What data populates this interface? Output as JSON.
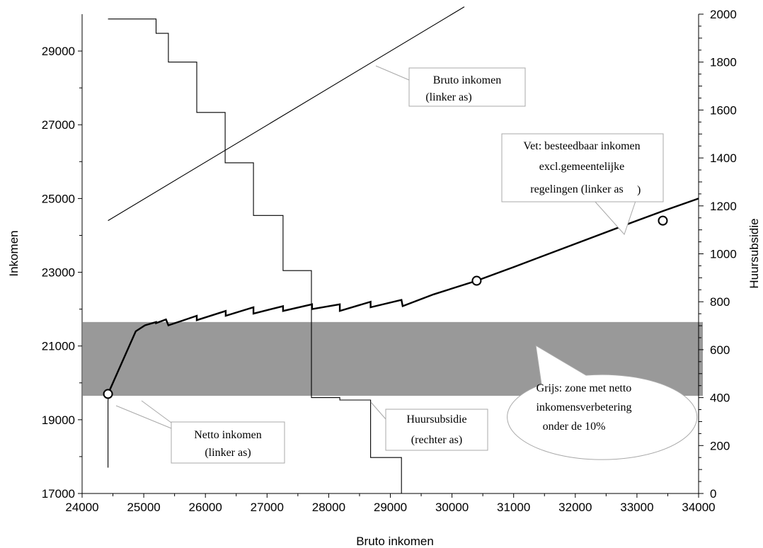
{
  "chart_data": {
    "type": "line",
    "xlabel": "Bruto inkomen",
    "ylabel_left": "Inkomen",
    "ylabel_right": "Huursubsidie",
    "xlim": [
      24000,
      34000
    ],
    "ylim_left": [
      17000,
      30000
    ],
    "ylim_right": [
      0,
      2000
    ],
    "x_ticks": [
      "24000",
      "25000",
      "26000",
      "27000",
      "28000",
      "29000",
      "30000",
      "31000",
      "32000",
      "33000",
      "34000"
    ],
    "y_left_ticks": [
      "17000",
      "19000",
      "21000",
      "23000",
      "25000",
      "27000",
      "29000"
    ],
    "y_right_ticks": [
      "0",
      "200",
      "400",
      "600",
      "800",
      "1000",
      "1200",
      "1400",
      "1600",
      "1800",
      "2000"
    ],
    "grey_zone": {
      "y_from": 19650,
      "y_to": 21650,
      "color": "#999999"
    },
    "series": [
      {
        "axis": "left",
        "color": "#000000",
        "bold": false,
        "x": [
          24420,
          30200
        ],
        "y": [
          24400,
          30200
        ]
      },
      {
        "axis": "right",
        "color": "#000000",
        "bold": false,
        "step": true,
        "x": [
          24420,
          25200,
          25200,
          25400,
          25400,
          25860,
          25860,
          26320,
          26320,
          26780,
          26780,
          27260,
          27260,
          27720,
          27720,
          28180,
          28180,
          28680,
          28680,
          29180,
          29180,
          29220
        ],
        "y": [
          1980,
          1980,
          1920,
          1920,
          1800,
          1800,
          1590,
          1590,
          1380,
          1380,
          1160,
          1160,
          930,
          930,
          400,
          400,
          390,
          390,
          150,
          150,
          0,
          0
        ]
      },
      {
        "axis": "left",
        "color": "#000000",
        "bold": false,
        "x": [
          24420,
          24420,
          24420,
          24420,
          24430
        ],
        "y": [
          17700,
          19250,
          19250,
          19500,
          19800
        ]
      },
      {
        "axis": "left",
        "color": "#000000",
        "bold": true,
        "x": [
          24420,
          24870,
          25020,
          25200,
          25200,
          25360,
          25400,
          25860,
          25860,
          26330,
          26330,
          26780,
          26780,
          27260,
          27260,
          27730,
          27730,
          28180,
          28180,
          28680,
          28680,
          29180,
          29200,
          29700,
          30400,
          31000,
          32000,
          33000,
          33420,
          34000
        ],
        "y": [
          19700,
          21400,
          21560,
          21650,
          21620,
          21720,
          21560,
          21820,
          21700,
          21950,
          21820,
          22050,
          21880,
          22080,
          21950,
          22130,
          22000,
          22130,
          21950,
          22200,
          22050,
          22250,
          22080,
          22400,
          22770,
          23140,
          23770,
          24400,
          24660,
          25000
        ]
      }
    ],
    "markers": {
      "x": [
        24420,
        30400,
        33420
      ],
      "y": [
        19700,
        22770,
        24400
      ]
    },
    "annotations": [
      {
        "id": "bruto",
        "lines": [
          "Bruto inkomen",
          "(linker as)"
        ]
      },
      {
        "id": "vet",
        "lines": [
          "Vet: besteedbaar inkomen",
          "excl.gemeentelijke",
          "regelingen (linker as"
        ],
        "close_paren": ")"
      },
      {
        "id": "netto",
        "lines": [
          "Netto inkomen",
          "(linker as)"
        ]
      },
      {
        "id": "huur",
        "lines": [
          "Huursubsidie",
          "(rechter as)"
        ]
      },
      {
        "id": "grijs",
        "lines": [
          "Grijs: zone met netto",
          "inkomensverbetering",
          "onder de 10%"
        ]
      }
    ]
  }
}
